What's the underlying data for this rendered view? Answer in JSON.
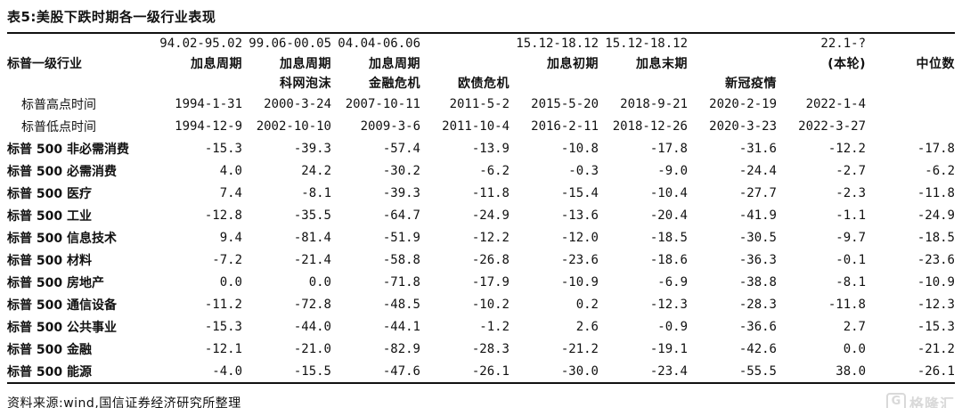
{
  "title": "表5:美股下跌时期各一级行业表现",
  "table": {
    "header": {
      "line1": [
        "",
        "94.02-95.02",
        "99.06-00.05",
        "04.04-06.06",
        "",
        "15.12-18.12",
        "15.12-18.12",
        "",
        "22.1-?",
        ""
      ],
      "line2": [
        "标普一级行业",
        "加息周期",
        "加息周期",
        "加息周期",
        "",
        "加息初期",
        "加息末期",
        "",
        "(本轮)",
        "中位数"
      ],
      "line3": [
        "",
        "",
        "科网泡沫",
        "金融危机",
        "欧债危机",
        "",
        "",
        "新冠疫情",
        "",
        ""
      ]
    },
    "date_rows": [
      {
        "label": "标普高点时间",
        "values": [
          "1994-1-31",
          "2000-3-24",
          "2007-10-11",
          "2011-5-2",
          "2015-5-20",
          "2018-9-21",
          "2020-2-19",
          "2022-1-4",
          ""
        ]
      },
      {
        "label": "标普低点时间",
        "values": [
          "1994-12-9",
          "2002-10-10",
          "2009-3-6",
          "2011-10-4",
          "2016-2-11",
          "2018-12-26",
          "2020-3-23",
          "2022-3-27",
          ""
        ]
      }
    ],
    "data_rows": [
      {
        "label": "标普 500 非必需消费",
        "values": [
          "-15.3",
          "-39.3",
          "-57.4",
          "-13.9",
          "-10.8",
          "-17.8",
          "-31.6",
          "-12.2",
          "-17.8"
        ]
      },
      {
        "label": "标普 500 必需消费",
        "values": [
          "4.0",
          "24.2",
          "-30.2",
          "-6.2",
          "-0.3",
          "-9.0",
          "-24.4",
          "-2.7",
          "-6.2"
        ]
      },
      {
        "label": "标普 500 医疗",
        "values": [
          "7.4",
          "-8.1",
          "-39.3",
          "-11.8",
          "-15.4",
          "-10.4",
          "-27.7",
          "-2.3",
          "-11.8"
        ]
      },
      {
        "label": "标普 500 工业",
        "values": [
          "-12.8",
          "-35.5",
          "-64.7",
          "-24.9",
          "-13.6",
          "-20.4",
          "-41.9",
          "-1.1",
          "-24.9"
        ]
      },
      {
        "label": "标普 500 信息技术",
        "values": [
          "9.4",
          "-81.4",
          "-51.9",
          "-12.2",
          "-12.0",
          "-18.5",
          "-30.5",
          "-9.7",
          "-18.5"
        ]
      },
      {
        "label": "标普 500 材料",
        "values": [
          "-7.2",
          "-21.4",
          "-58.8",
          "-26.8",
          "-23.6",
          "-18.6",
          "-36.3",
          "-0.1",
          "-23.6"
        ]
      },
      {
        "label": "标普 500 房地产",
        "values": [
          "0.0",
          "0.0",
          "-71.8",
          "-17.9",
          "-10.9",
          "-6.9",
          "-38.8",
          "-8.1",
          "-10.9"
        ]
      },
      {
        "label": "标普 500 通信设备",
        "values": [
          "-11.2",
          "-72.8",
          "-48.5",
          "-10.2",
          "0.2",
          "-12.3",
          "-28.3",
          "-11.8",
          "-12.3"
        ]
      },
      {
        "label": "标普 500 公共事业",
        "values": [
          "-15.3",
          "-44.0",
          "-44.1",
          "-1.2",
          "2.6",
          "-0.9",
          "-36.6",
          "2.7",
          "-15.3"
        ]
      },
      {
        "label": "标普 500 金融",
        "values": [
          "-12.1",
          "-21.0",
          "-82.9",
          "-28.3",
          "-21.2",
          "-19.1",
          "-42.6",
          "0.0",
          "-21.2"
        ]
      },
      {
        "label": "标普 500 能源",
        "values": [
          "-4.0",
          "-15.5",
          "-47.6",
          "-26.1",
          "-30.0",
          "-23.4",
          "-55.5",
          "38.0",
          "-26.1"
        ]
      }
    ]
  },
  "footer": {
    "source": "资料来源:wind,国信证券经济研究所整理"
  },
  "watermark": {
    "logo_letter": "G",
    "logo_text": "格隆汇"
  },
  "colors": {
    "text": "#111111",
    "rule": "#111111",
    "watermark": "#d9d9d9",
    "background": "#ffffff"
  }
}
